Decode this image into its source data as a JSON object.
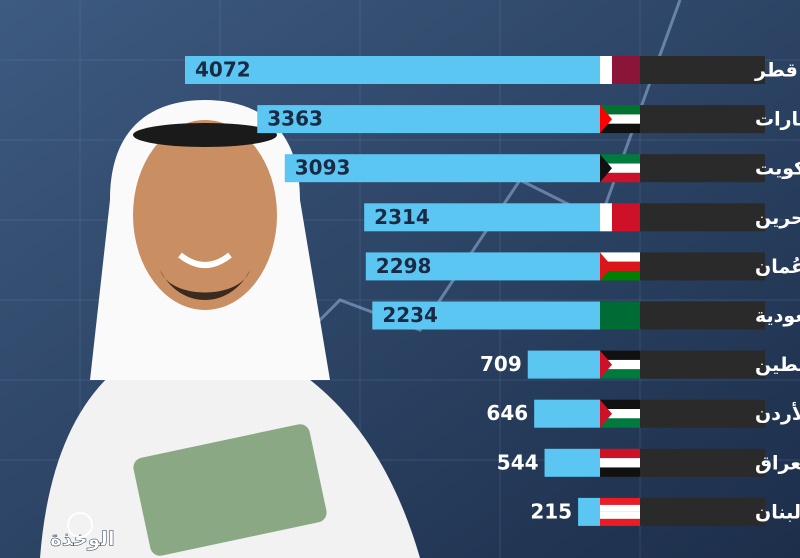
{
  "chart_data": {
    "type": "bar",
    "orientation": "horizontal",
    "categories": [
      "قطر",
      "الإمارات",
      "الكويت",
      "البحرين",
      "عُمان",
      "السعودية",
      "فلسطين",
      "الأردن",
      "العراق",
      "لبنان"
    ],
    "values": [
      4072,
      3363,
      3093,
      2314,
      2298,
      2234,
      709,
      646,
      544,
      215
    ],
    "color": "#5cc6f2"
  },
  "logo": "الوخذة"
}
